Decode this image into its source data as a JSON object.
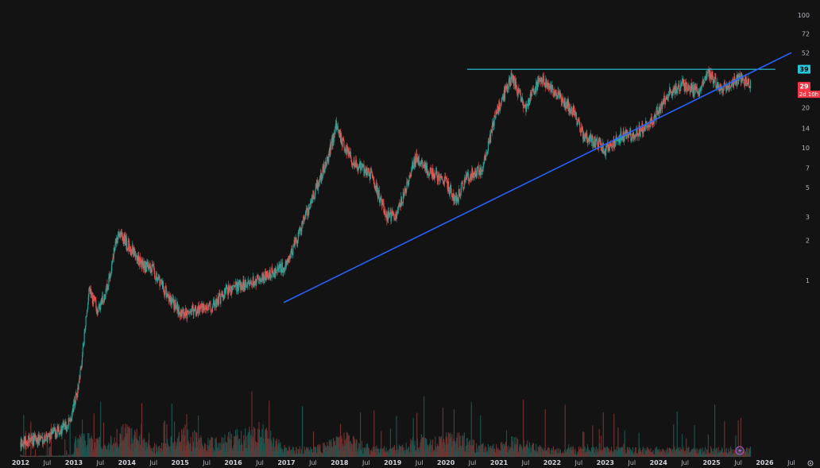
{
  "chart_data": {
    "type": "candlestick",
    "yscale": "log",
    "ylim": [
      0.05,
      110
    ],
    "y_ticks": [
      "1",
      "2",
      "3",
      "5",
      "7",
      "10",
      "14",
      "20",
      "52",
      "72",
      "100"
    ],
    "x_ticks": [
      "2012",
      "Jul",
      "2013",
      "Jul",
      "2014",
      "Jul",
      "2015",
      "Jul",
      "2016",
      "Jul",
      "2017",
      "Jul",
      "2018",
      "Jul",
      "2019",
      "Jul",
      "2020",
      "Jul",
      "2021",
      "Jul",
      "2022",
      "Jul",
      "2023",
      "Jul",
      "2024",
      "Jul",
      "2025",
      "Jul",
      "2026",
      "Jul"
    ],
    "price_path": [
      [
        2012.0,
        0.06
      ],
      [
        2012.45,
        0.065
      ],
      [
        2012.9,
        0.08
      ],
      [
        2013.1,
        0.15
      ],
      [
        2013.3,
        0.85
      ],
      [
        2013.45,
        0.6
      ],
      [
        2013.6,
        0.75
      ],
      [
        2013.85,
        2.4
      ],
      [
        2014.0,
        1.9
      ],
      [
        2014.3,
        1.3
      ],
      [
        2014.5,
        1.2
      ],
      [
        2014.75,
        0.8
      ],
      [
        2015.05,
        0.55
      ],
      [
        2015.35,
        0.6
      ],
      [
        2015.6,
        0.62
      ],
      [
        2015.9,
        0.85
      ],
      [
        2016.3,
        0.95
      ],
      [
        2016.6,
        1.05
      ],
      [
        2017.0,
        1.3
      ],
      [
        2017.2,
        2.0
      ],
      [
        2017.5,
        4.2
      ],
      [
        2017.8,
        8.5
      ],
      [
        2017.95,
        15
      ],
      [
        2018.1,
        10
      ],
      [
        2018.3,
        7.5
      ],
      [
        2018.6,
        6.3
      ],
      [
        2018.9,
        3.0
      ],
      [
        2019.1,
        3.2
      ],
      [
        2019.45,
        8.6
      ],
      [
        2019.7,
        6.5
      ],
      [
        2019.95,
        6.0
      ],
      [
        2020.2,
        4.0
      ],
      [
        2020.4,
        6.0
      ],
      [
        2020.7,
        7.0
      ],
      [
        2020.95,
        18
      ],
      [
        2021.25,
        34
      ],
      [
        2021.5,
        20
      ],
      [
        2021.8,
        34
      ],
      [
        2022.0,
        27
      ],
      [
        2022.4,
        19
      ],
      [
        2022.6,
        12
      ],
      [
        2022.85,
        11
      ],
      [
        2023.0,
        9.5
      ],
      [
        2023.3,
        12
      ],
      [
        2023.6,
        13
      ],
      [
        2023.85,
        15
      ],
      [
        2024.2,
        26
      ],
      [
        2024.45,
        30
      ],
      [
        2024.75,
        26
      ],
      [
        2024.95,
        36
      ],
      [
        2025.2,
        28
      ],
      [
        2025.45,
        31
      ],
      [
        2025.55,
        34
      ],
      [
        2025.75,
        29
      ]
    ],
    "lines": [
      {
        "name": "resistance",
        "color": "#26c6da",
        "points": [
          [
            2020.4,
            39
          ],
          [
            2026.2,
            39
          ]
        ]
      },
      {
        "name": "trendline",
        "color": "#2962ff",
        "points": [
          [
            2016.95,
            0.68
          ],
          [
            2026.5,
            52
          ]
        ]
      }
    ],
    "price_labels": [
      {
        "value": "39",
        "bg": "#26c6da",
        "fg": "#000000",
        "sub": ""
      },
      {
        "value": "29",
        "bg": "#f23645",
        "fg": "#ffffff",
        "sub": "2d 10h"
      }
    ]
  },
  "colors": {
    "up": "#26a69a",
    "down": "#ef5350",
    "background": "#131313",
    "text": "#b2b5be"
  },
  "icons": [
    "lightning-icon",
    "gear-icon"
  ]
}
